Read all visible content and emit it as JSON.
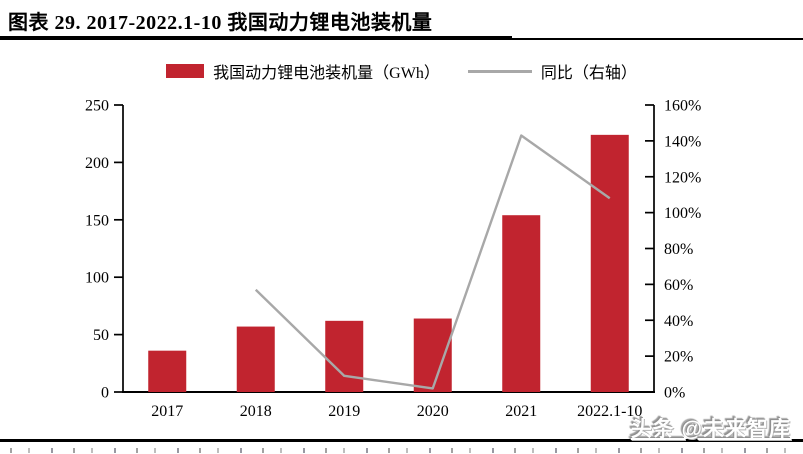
{
  "header": {
    "title": "图表 29. 2017-2022.1-10 我国动力锂电池装机量"
  },
  "legend": {
    "bar_label": "我国动力锂电池装机量（GWh）",
    "line_label": "同比（右轴）"
  },
  "watermark": "头条 @未来智库",
  "colors": {
    "bar": "#c1242f",
    "line": "#a8a8a8",
    "axis": "#000000",
    "rule": "#000000"
  },
  "chart_data": {
    "type": "bar",
    "subtype": "bar-line-combo",
    "title": "图表 29. 2017-2022.1-10 我国动力锂电池装机量",
    "categories": [
      "2017",
      "2018",
      "2019",
      "2020",
      "2021",
      "2022.1-10"
    ],
    "series": [
      {
        "name": "我国动力锂电池装机量（GWh）",
        "type": "bar",
        "axis": "left",
        "unit": "GWh",
        "color": "#c1242f",
        "values": [
          36,
          57,
          62,
          64,
          154,
          224
        ]
      },
      {
        "name": "同比（右轴）",
        "type": "line",
        "axis": "right",
        "unit": "%",
        "color": "#a8a8a8",
        "values": [
          null,
          57,
          9,
          2,
          143,
          108
        ]
      }
    ],
    "left_axis": {
      "min": 0,
      "max": 250,
      "step": 50,
      "tick_labels": [
        "0",
        "50",
        "100",
        "150",
        "200",
        "250"
      ]
    },
    "right_axis": {
      "min": 0,
      "max": 160,
      "step": 20,
      "tick_labels": [
        "0%",
        "20%",
        "40%",
        "60%",
        "80%",
        "100%",
        "120%",
        "140%",
        "160%"
      ]
    },
    "grid": false,
    "legend_position": "top-center"
  }
}
